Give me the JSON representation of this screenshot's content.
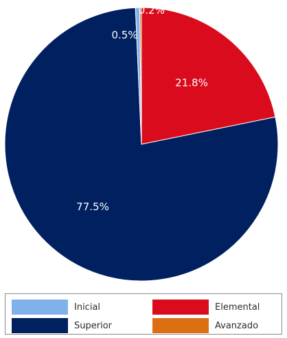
{
  "chart_data": {
    "type": "pie",
    "slices": [
      {
        "label": "Elemental",
        "value": 21.8,
        "display": "21.8%",
        "color": "#d90b1c"
      },
      {
        "label": "Superior",
        "value": 77.5,
        "display": "77.5%",
        "color": "#002060"
      },
      {
        "label": "Inicial",
        "value": 0.5,
        "display": "0.5%",
        "color": "#7fb2ea"
      },
      {
        "label": "Avanzado",
        "value": 0.2,
        "display": "0.2%",
        "color": "#dd6f13"
      }
    ],
    "legend": {
      "placement": "bottom",
      "items": [
        {
          "label": "Inicial",
          "color": "#7fb2ea"
        },
        {
          "label": "Elemental",
          "color": "#d90b1c"
        },
        {
          "label": "Superior",
          "color": "#002060"
        },
        {
          "label": "Avanzado",
          "color": "#dd6f13"
        }
      ]
    }
  }
}
